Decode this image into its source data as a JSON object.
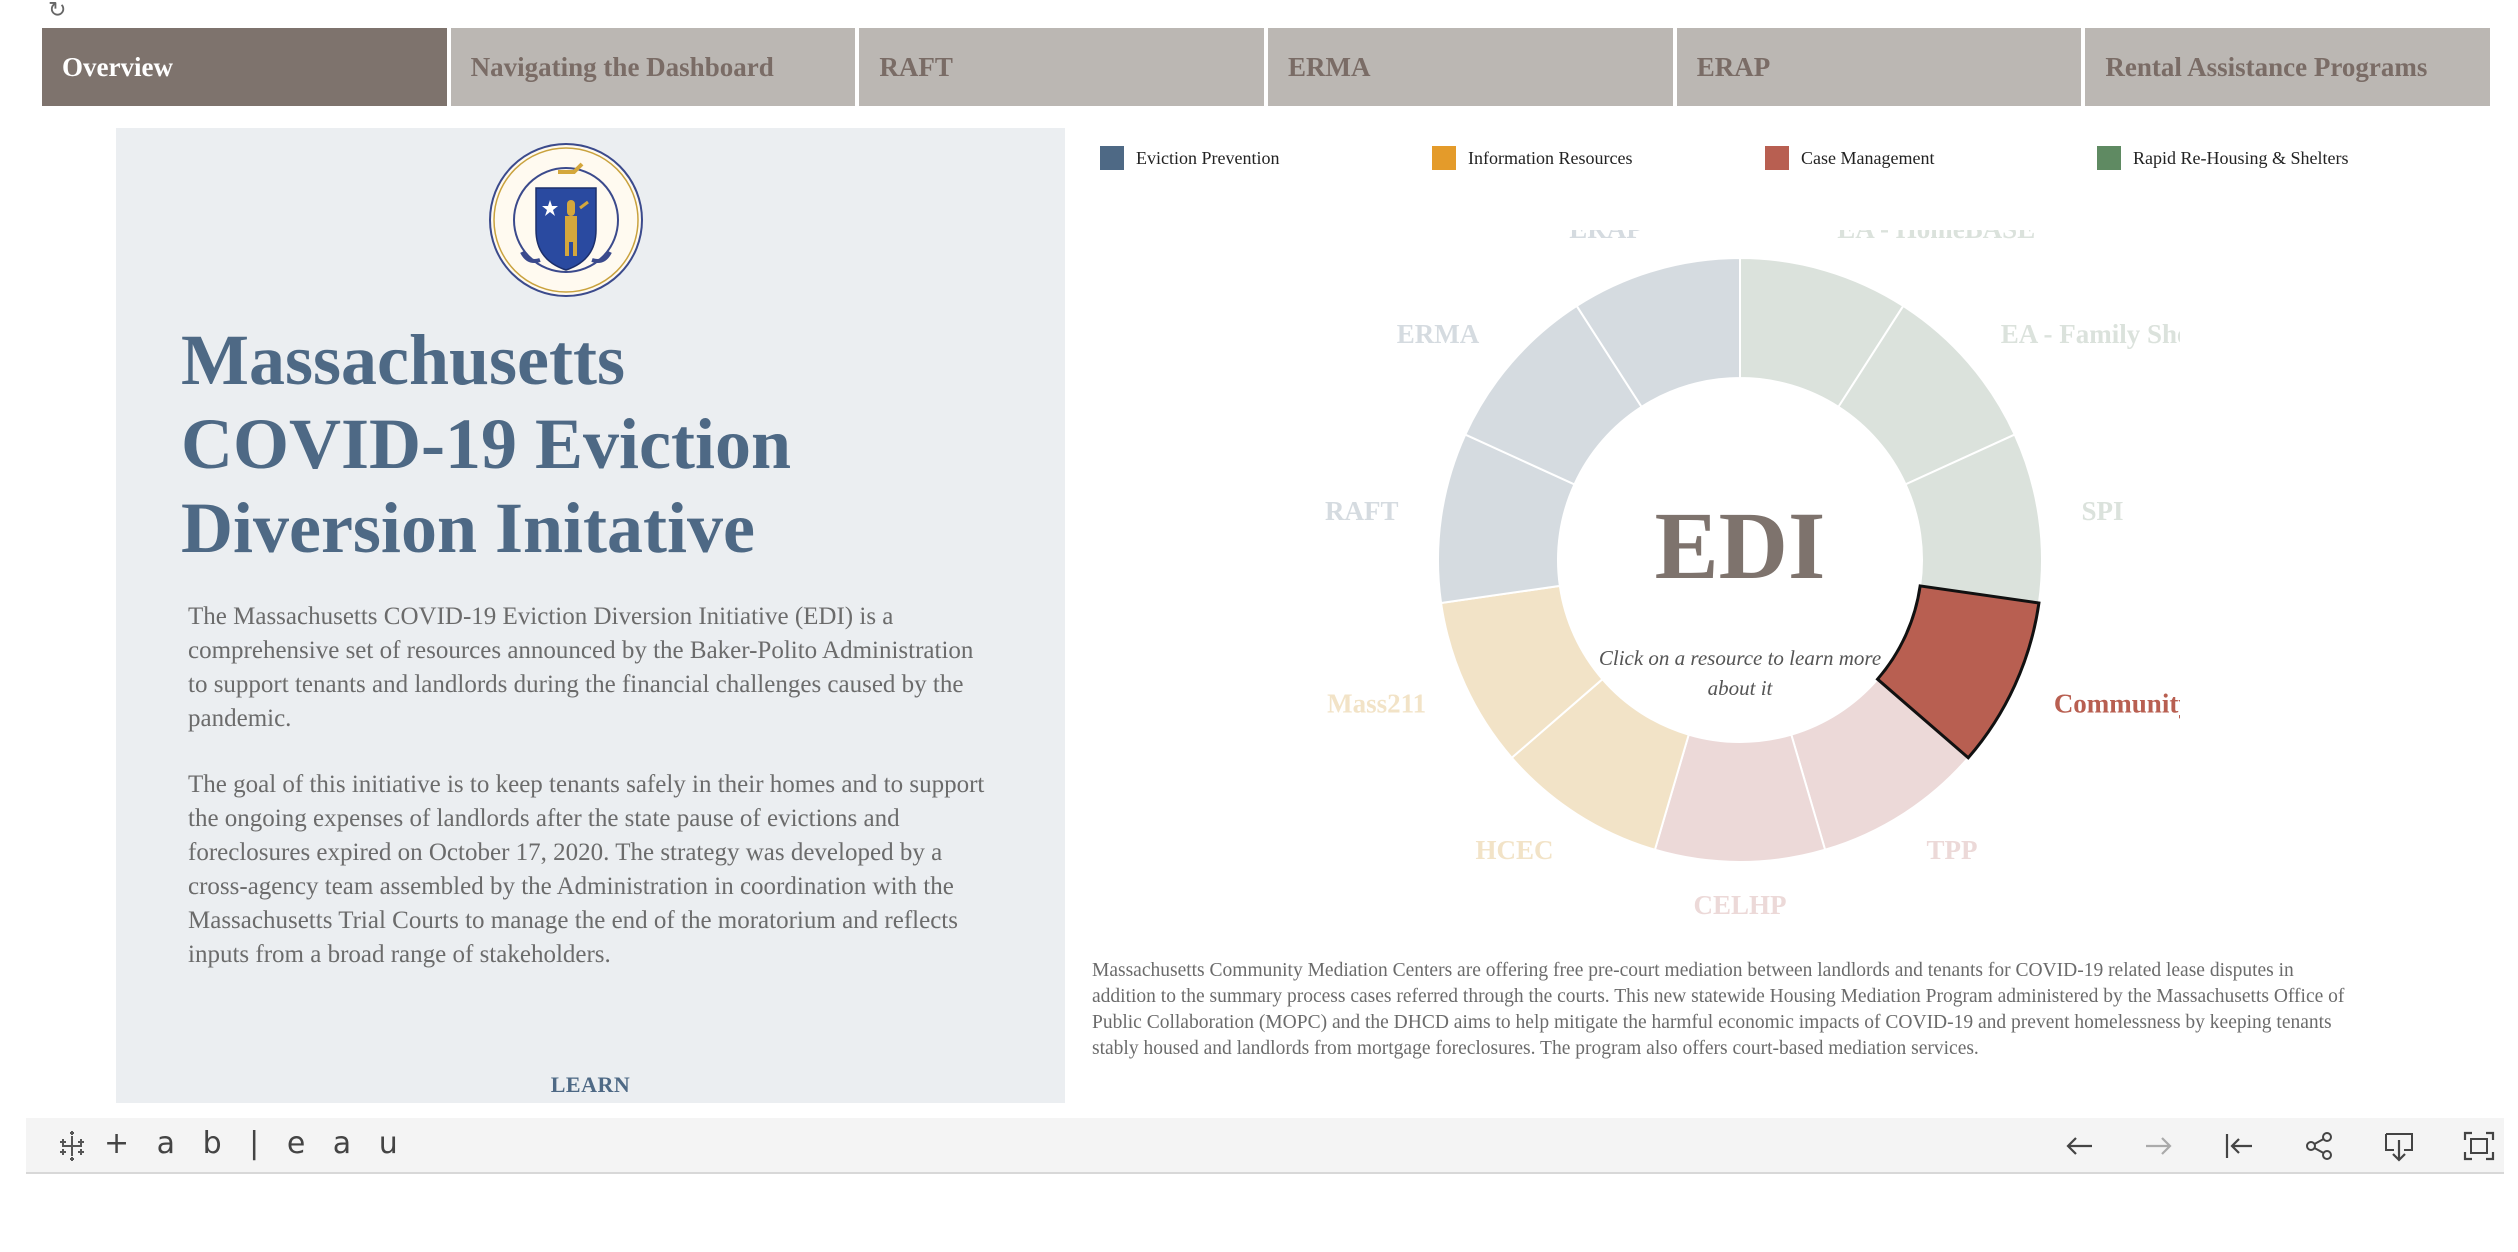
{
  "toolbar_top": {
    "reload_icon": "reload-icon",
    "reload_glyph": "↻"
  },
  "tabs": [
    {
      "label": "Overview",
      "active": true
    },
    {
      "label": "Navigating the Dashboard",
      "active": false
    },
    {
      "label": "RAFT",
      "active": false
    },
    {
      "label": "ERMA",
      "active": false
    },
    {
      "label": "ERAP",
      "active": false
    },
    {
      "label": "Rental Assistance Programs",
      "active": false
    }
  ],
  "left_panel": {
    "seal_icon": "massachusetts-seal-icon",
    "title": "Massachusetts\nCOVID-19 Eviction\nDiversion Initative",
    "paragraph1": "The Massachusetts COVID-19 Eviction Diversion Initiative (EDI) is a comprehensive set of resources announced by the Baker-Polito Administration to support tenants and landlords during the financial challenges caused by the pandemic.",
    "paragraph2": "The goal of this initiative is to keep tenants safely in their homes and to support the ongoing expenses of landlords after the state pause of evictions and foreclosures expired on October 17, 2020. The strategy was developed by a cross-agency team assembled by the Administration in coordination with the Massachusetts Trial Courts to manage the end of the moratorium and reflects inputs from a broad range of stakeholders.",
    "learn_label": "LEARN"
  },
  "legend": [
    {
      "label": "Eviction Prevention",
      "color": "#4e6985"
    },
    {
      "label": "Information Resources",
      "color": "#e49b2a"
    },
    {
      "label": "Case Management",
      "color": "#b85f51"
    },
    {
      "label": "Rapid Re-Housing & Shelters",
      "color": "#5f8a62"
    }
  ],
  "chart_data": {
    "type": "pie",
    "variant": "donut",
    "center_title": "EDI",
    "center_subtitle": "Click on a resource to learn more about it",
    "selected": "Community Mediation",
    "segments": [
      {
        "label": "EA - HomeBASE",
        "category": "Rapid Re-Housing & Shelters",
        "value": 1,
        "fill": "#dbe2dc",
        "label_color": "#dbe2dc"
      },
      {
        "label": "EA - Family Shelters",
        "category": "Rapid Re-Housing & Shelters",
        "value": 1,
        "fill": "#dbe2dc",
        "label_color": "#dbe2dc"
      },
      {
        "label": "SPI",
        "category": "Rapid Re-Housing & Shelters",
        "value": 1,
        "fill": "#dbe2dc",
        "label_color": "#dbe2dc"
      },
      {
        "label": "Community Mediation",
        "category": "Case Management",
        "value": 1,
        "fill": "#b85f51",
        "label_color": "#b85f51"
      },
      {
        "label": "TPP",
        "category": "Case Management",
        "value": 1,
        "fill": "#ecd9d8",
        "label_color": "#ecd9d8"
      },
      {
        "label": "CELHP",
        "category": "Case Management",
        "value": 1,
        "fill": "#ecd9d8",
        "label_color": "#ecd9d8"
      },
      {
        "label": "HCEC",
        "category": "Information Resources",
        "value": 1,
        "fill": "#f2e3c7",
        "label_color": "#f2e3c7"
      },
      {
        "label": "Mass211",
        "category": "Information Resources",
        "value": 1,
        "fill": "#f2e3c7",
        "label_color": "#f2e3c7"
      },
      {
        "label": "RAFT",
        "category": "Eviction Prevention",
        "value": 1,
        "fill": "#d5dbe0",
        "label_color": "#d5dbe0"
      },
      {
        "label": "ERMA",
        "category": "Eviction Prevention",
        "value": 1,
        "fill": "#d5dbe0",
        "label_color": "#d5dbe0"
      },
      {
        "label": "ERAP",
        "category": "Eviction Prevention",
        "value": 1,
        "fill": "#d5dbe0",
        "label_color": "#d5dbe0"
      }
    ]
  },
  "description": "Massachusetts Community Mediation Centers are offering free pre-court mediation between landlords and tenants for COVID-19 related lease disputes in addition to the summary process cases referred through the courts. This new statewide Housing Mediation Program administered by the Massachusetts Office of Public Collaboration (MOPC) and the DHCD aims to help mitigate the harmful economic impacts of COVID-19 and prevent homelessness by keeping tenants stably housed and landlords from mortgage foreclosures. The program also offers court-based mediation services.",
  "footer": {
    "logo_icon": "tableau-logo-icon",
    "logo_text": "+ a b | e a u",
    "buttons": [
      {
        "name": "undo-button",
        "icon": "arrow-left-icon"
      },
      {
        "name": "redo-button",
        "icon": "arrow-right-icon"
      },
      {
        "name": "revert-button",
        "icon": "revert-icon"
      },
      {
        "name": "share-button",
        "icon": "share-icon"
      },
      {
        "name": "download-button",
        "icon": "download-icon"
      },
      {
        "name": "fullscreen-button",
        "icon": "fullscreen-icon"
      }
    ]
  }
}
